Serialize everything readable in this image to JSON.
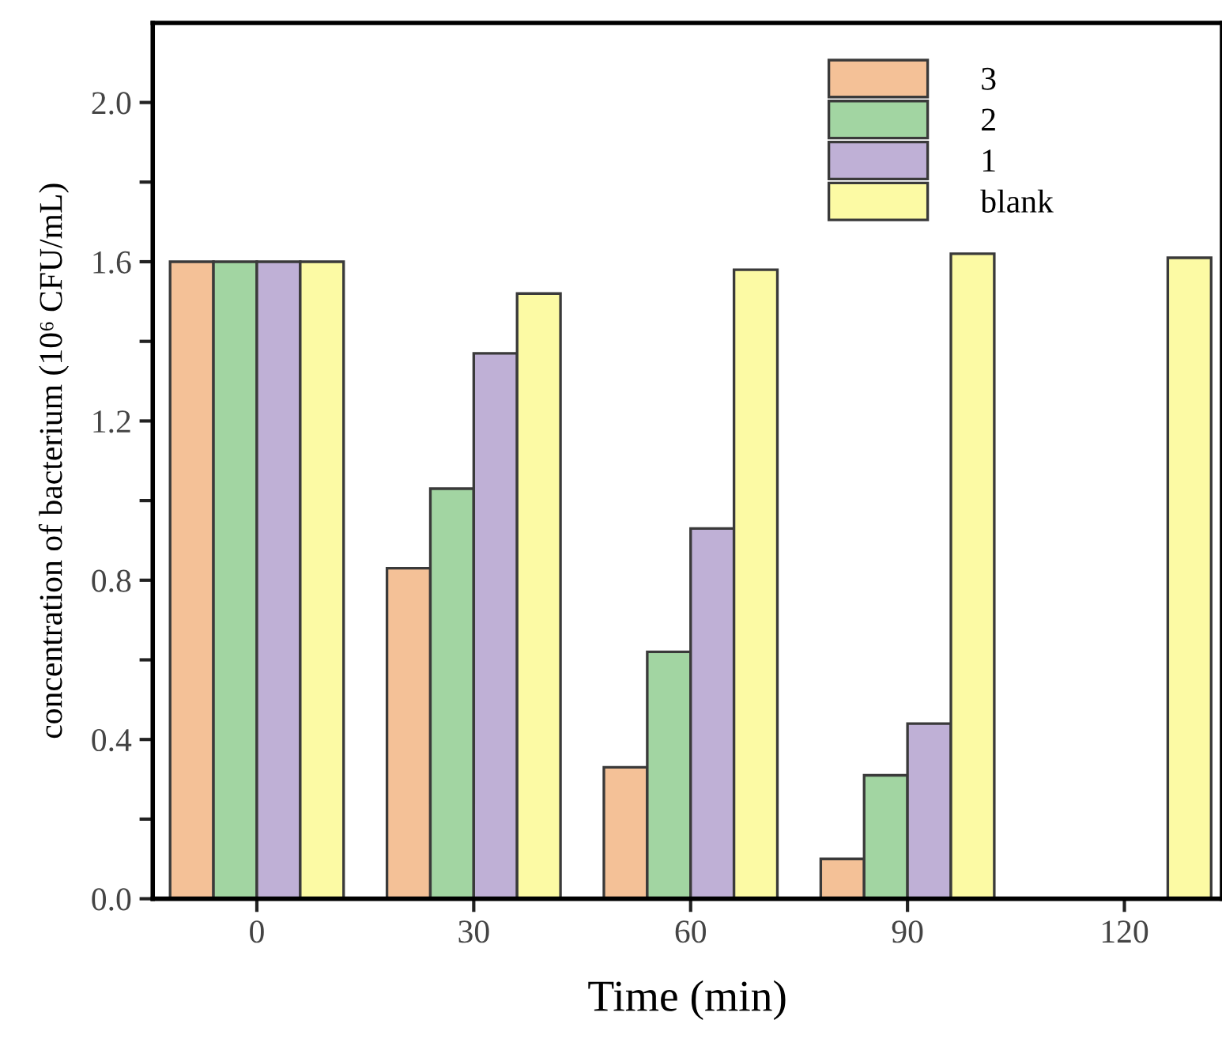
{
  "chart_data": {
    "type": "bar",
    "xlabel": "Time (min)",
    "ylabel": "concentration of bacterium (10⁶ CFU/mL)",
    "categories": [
      "0",
      "30",
      "60",
      "90",
      "120"
    ],
    "series": [
      {
        "name": "3",
        "color": "#f4c197",
        "values": [
          1.6,
          0.83,
          0.33,
          0.1,
          null
        ]
      },
      {
        "name": "2",
        "color": "#a2d5a2",
        "values": [
          1.6,
          1.03,
          0.62,
          0.31,
          null
        ]
      },
      {
        "name": "1",
        "color": "#bfb0d6",
        "values": [
          1.6,
          1.37,
          0.93,
          0.44,
          null
        ]
      },
      {
        "name": "blank",
        "color": "#fcfaa4",
        "values": [
          1.6,
          1.52,
          1.58,
          1.62,
          1.61
        ]
      }
    ],
    "ylim": [
      0,
      2.2
    ],
    "yticks": [
      {
        "value": 0,
        "label": "0.0"
      },
      {
        "value": 0.2,
        "label": null
      },
      {
        "value": 0.4,
        "label": "0.4"
      },
      {
        "value": 0.6,
        "label": null
      },
      {
        "value": 0.8,
        "label": "0.8"
      },
      {
        "value": 1.0,
        "label": null
      },
      {
        "value": 1.2,
        "label": "1.2"
      },
      {
        "value": 1.4,
        "label": null
      },
      {
        "value": 1.6,
        "label": "1.6"
      },
      {
        "value": 1.8,
        "label": null
      },
      {
        "value": 2.0,
        "label": "2.0"
      }
    ],
    "grid": false,
    "legend": "top right"
  }
}
